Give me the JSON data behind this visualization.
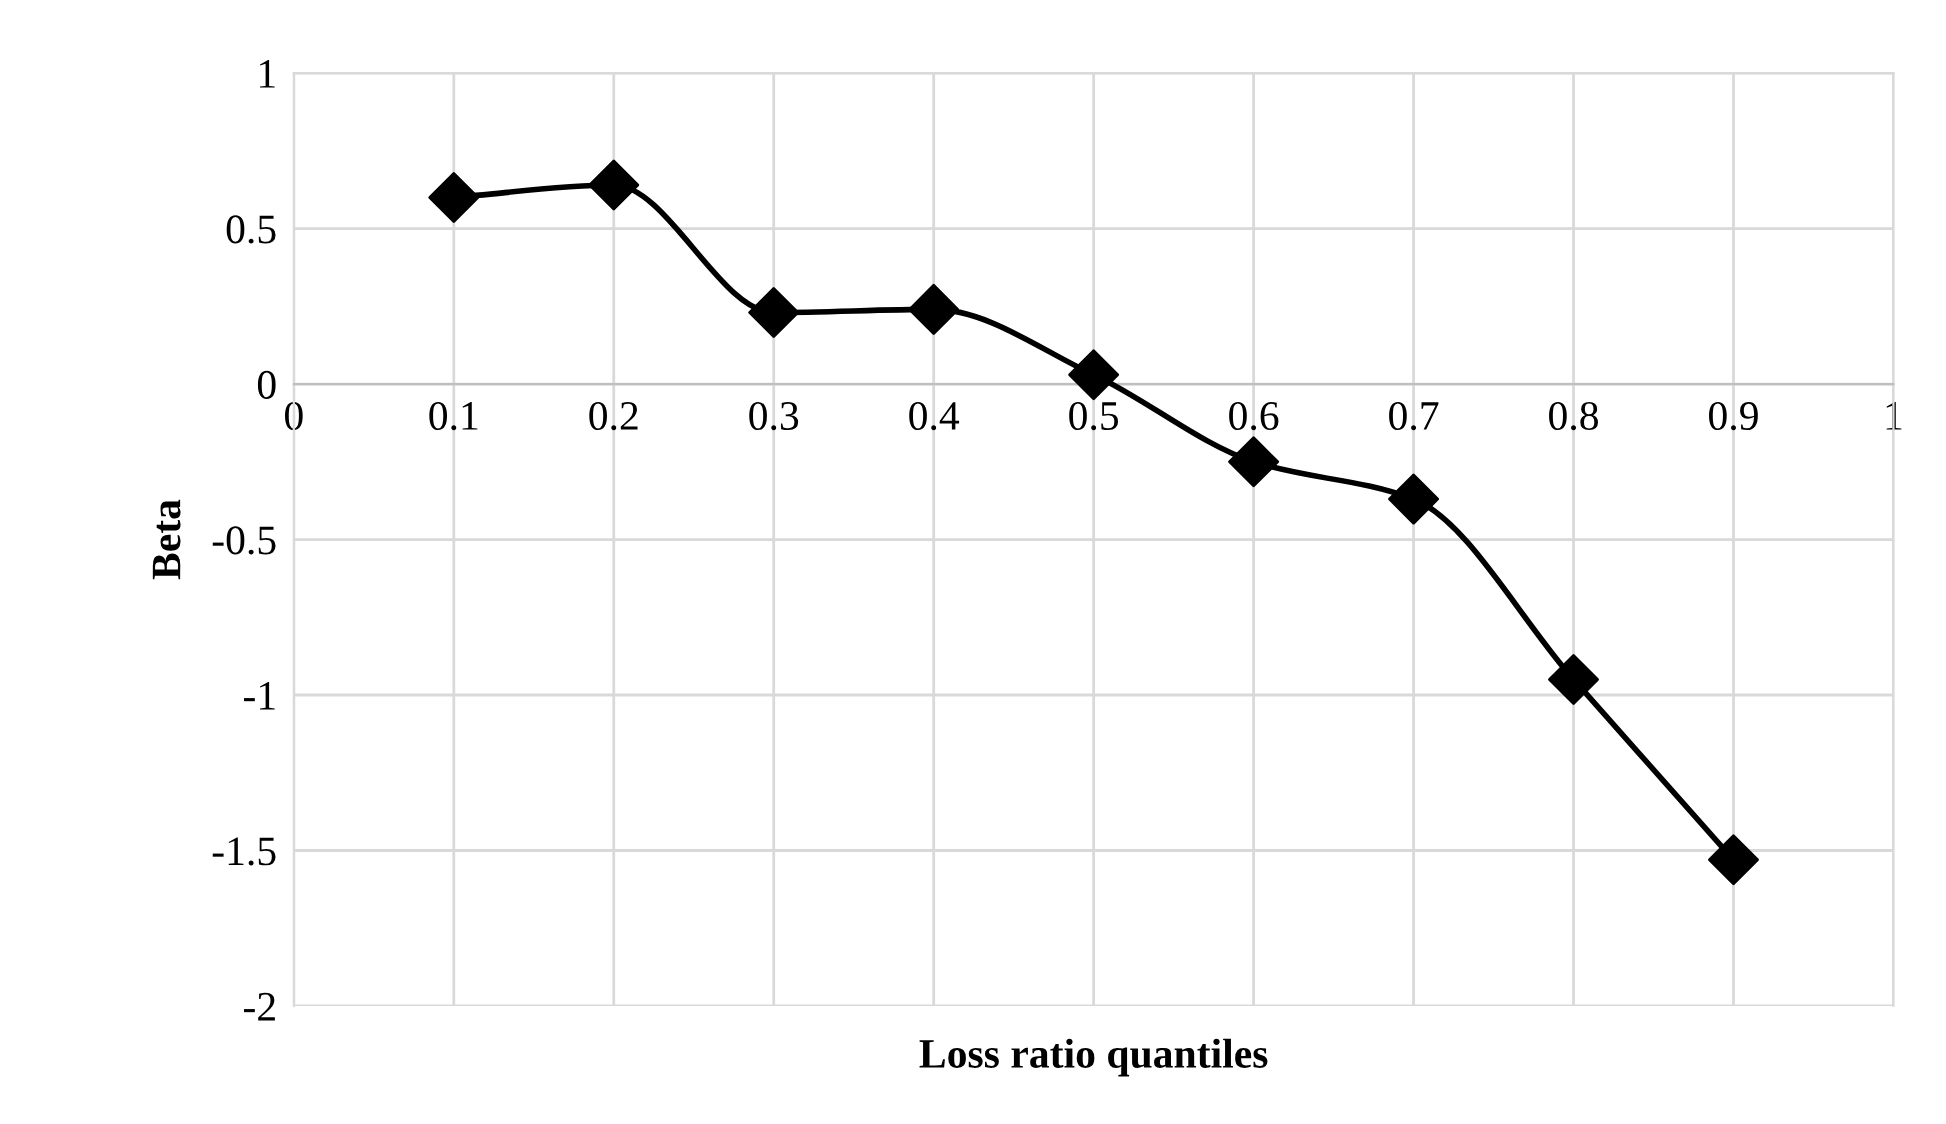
{
  "chart_data": {
    "type": "line",
    "xlabel": "Loss ratio quantiles",
    "ylabel": "Beta",
    "x": [
      0.1,
      0.2,
      0.3,
      0.4,
      0.5,
      0.6,
      0.7,
      0.8,
      0.9
    ],
    "series": [
      {
        "color": "#000000",
        "values": [
          0.6,
          0.64,
          0.23,
          0.24,
          0.03,
          -0.25,
          -0.37,
          -0.95,
          -1.53
        ]
      }
    ],
    "xlim": [
      0,
      1
    ],
    "xticks": [
      0,
      0.1,
      0.2,
      0.3,
      0.4,
      0.5,
      0.6,
      0.7,
      0.8,
      0.9,
      1
    ],
    "ylim": [
      -2,
      1
    ],
    "yticks": [
      -2,
      -1.5,
      -1,
      -0.5,
      0,
      0.5,
      1
    ],
    "grid": true,
    "marker": "diamond",
    "line_style": "solid",
    "legend": false
  }
}
